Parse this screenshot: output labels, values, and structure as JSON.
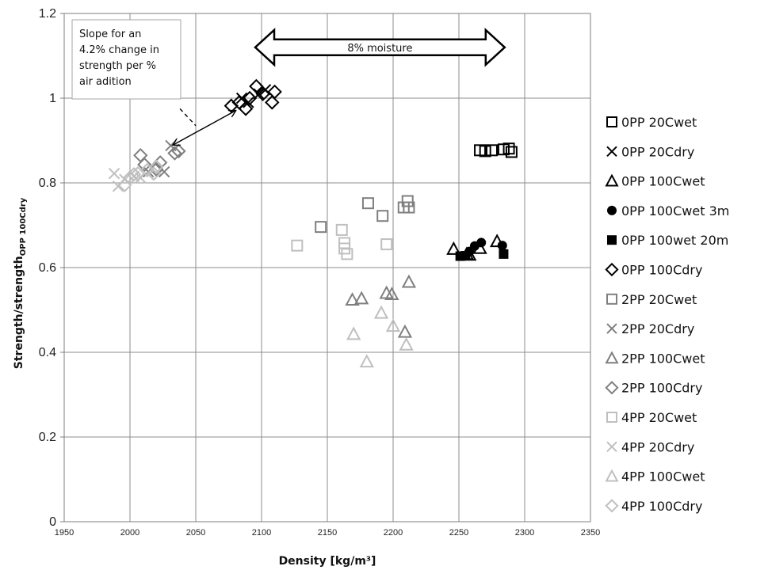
{
  "chart_data": {
    "type": "scatter",
    "title": "",
    "xlabel": "Density [kg/m³]",
    "ylabel_main": "Strength/strength",
    "ylabel_sub": "OPP 100Cdry",
    "xlim": [
      1950,
      2350
    ],
    "ylim": [
      0,
      1.2
    ],
    "x_ticks": [
      "1950",
      "2000",
      "2050",
      "2100",
      "2150",
      "2200",
      "2250",
      "2300",
      "2350"
    ],
    "y_ticks": [
      "0",
      "0.2",
      "0.4",
      "0.6",
      "0.8",
      "1",
      "1.2"
    ],
    "grid": true,
    "legend_position": "right",
    "annotations": {
      "slope_box_lines": [
        "Slope for an",
        "4.2% change in",
        "strength per %",
        "air adition"
      ],
      "moisture_arrow_label": "8% moisture",
      "moisture_arrow_x": [
        2100,
        2280
      ],
      "moisture_arrow_y": 1.12,
      "slope_arrow": {
        "from": [
          2033,
          0.89
        ],
        "to": [
          2080,
          0.97
        ]
      },
      "slope_dash": {
        "from": [
          2038,
          0.975
        ],
        "to": [
          2050,
          0.935
        ]
      }
    },
    "series": [
      {
        "name": "0PP 20Cwet",
        "marker": "square",
        "filled": false,
        "color": "#000000",
        "points": [
          [
            2266,
            0.877
          ],
          [
            2270,
            0.875
          ],
          [
            2275,
            0.877
          ],
          [
            2284,
            0.879
          ],
          [
            2288,
            0.881
          ],
          [
            2290,
            0.873
          ]
        ]
      },
      {
        "name": "0PP 20Cdry",
        "marker": "x",
        "filled": false,
        "color": "#000000",
        "points": [
          [
            2085,
            1.0
          ],
          [
            2090,
            0.99
          ],
          [
            2098,
            1.01
          ],
          [
            2103,
            1.02
          ]
        ]
      },
      {
        "name": "0PP 100Cwet",
        "marker": "triangle",
        "filled": false,
        "color": "#000000",
        "points": [
          [
            2246,
            0.644
          ],
          [
            2256,
            0.632
          ],
          [
            2258,
            0.63
          ],
          [
            2266,
            0.646
          ],
          [
            2279,
            0.662
          ]
        ]
      },
      {
        "name": "0PP 100Cwet 3m",
        "marker": "circle",
        "filled": true,
        "color": "#000000",
        "points": [
          [
            2258,
            0.638
          ],
          [
            2262,
            0.651
          ],
          [
            2267,
            0.659
          ],
          [
            2283,
            0.652
          ]
        ]
      },
      {
        "name": "0PP 100wet 20m",
        "marker": "square",
        "filled": true,
        "color": "#000000",
        "points": [
          [
            2251,
            0.627
          ],
          [
            2255,
            0.628
          ],
          [
            2284,
            0.632
          ]
        ]
      },
      {
        "name": "0PP 100Cdry",
        "marker": "diamond",
        "filled": false,
        "color": "#000000",
        "points": [
          [
            2077,
            0.982
          ],
          [
            2083,
            0.99
          ],
          [
            2088,
            0.975
          ],
          [
            2091,
            1.0
          ],
          [
            2096,
            1.028
          ],
          [
            2101,
            1.01
          ],
          [
            2108,
            0.99
          ],
          [
            2110,
            1.015
          ]
        ]
      },
      {
        "name": "2PP 20Cwet",
        "marker": "square",
        "filled": false,
        "color": "#7f7f7f",
        "points": [
          [
            2145,
            0.696
          ],
          [
            2181,
            0.752
          ],
          [
            2192,
            0.722
          ],
          [
            2208,
            0.742
          ],
          [
            2211,
            0.757
          ],
          [
            2212,
            0.742
          ]
        ]
      },
      {
        "name": "2PP 20Cdry",
        "marker": "x",
        "filled": false,
        "color": "#7f7f7f",
        "points": [
          [
            2014,
            0.826
          ],
          [
            2026,
            0.826
          ],
          [
            2031,
            0.888
          ]
        ]
      },
      {
        "name": "2PP 100Cwet",
        "marker": "triangle",
        "filled": false,
        "color": "#7f7f7f",
        "points": [
          [
            2169,
            0.524
          ],
          [
            2176,
            0.527
          ],
          [
            2195,
            0.54
          ],
          [
            2199,
            0.537
          ],
          [
            2209,
            0.448
          ],
          [
            2212,
            0.566
          ]
        ]
      },
      {
        "name": "2PP 100Cdry",
        "marker": "diamond",
        "filled": false,
        "color": "#7f7f7f",
        "points": [
          [
            2008,
            0.865
          ],
          [
            2011,
            0.843
          ],
          [
            2020,
            0.832
          ],
          [
            2023,
            0.848
          ],
          [
            2034,
            0.87
          ],
          [
            2037,
            0.875
          ]
        ]
      },
      {
        "name": "4PP 20Cwet",
        "marker": "square",
        "filled": false,
        "color": "#bfbfbf",
        "points": [
          [
            2127,
            0.652
          ],
          [
            2161,
            0.689
          ],
          [
            2163,
            0.658
          ],
          [
            2163,
            0.645
          ],
          [
            2165,
            0.632
          ],
          [
            2195,
            0.655
          ]
        ]
      },
      {
        "name": "4PP 20Cdry",
        "marker": "x",
        "filled": false,
        "color": "#bfbfbf",
        "points": [
          [
            1988,
            0.822
          ],
          [
            1991,
            0.792
          ],
          [
            1996,
            0.808
          ],
          [
            2003,
            0.815
          ],
          [
            2008,
            0.812
          ]
        ]
      },
      {
        "name": "4PP 100Cwet",
        "marker": "triangle",
        "filled": false,
        "color": "#bfbfbf",
        "points": [
          [
            2170,
            0.443
          ],
          [
            2180,
            0.378
          ],
          [
            2191,
            0.493
          ],
          [
            2200,
            0.462
          ],
          [
            2210,
            0.418
          ]
        ]
      },
      {
        "name": "4PP 100Cdry",
        "marker": "diamond",
        "filled": false,
        "color": "#bfbfbf",
        "points": [
          [
            1996,
            0.795
          ],
          [
            2000,
            0.812
          ],
          [
            2003,
            0.82
          ],
          [
            2006,
            0.822
          ],
          [
            2013,
            0.83
          ],
          [
            2018,
            0.822
          ],
          [
            2020,
            0.838
          ]
        ]
      }
    ]
  }
}
